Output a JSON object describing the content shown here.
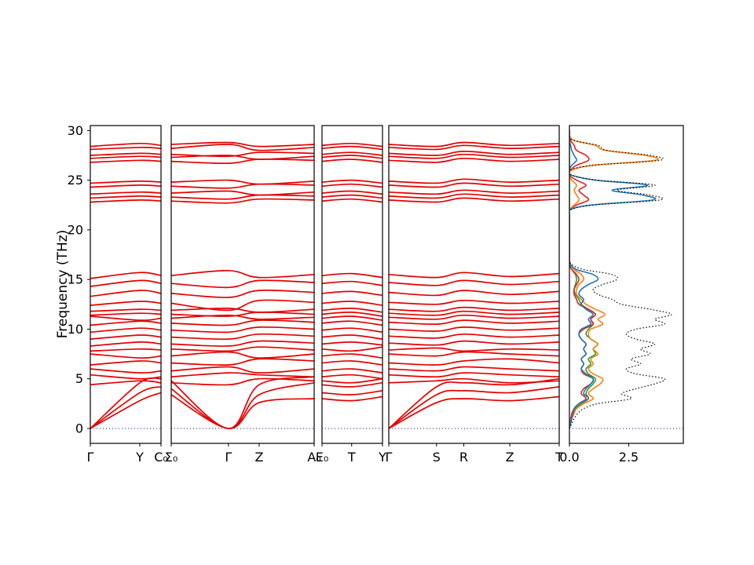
{
  "figure": {
    "background": "#ffffff",
    "colors": {
      "band": "#e60000",
      "zero_line": "#0000cc",
      "axis": "#000000",
      "dos_total": "#000000"
    }
  },
  "chart_data": {
    "type": "line",
    "title": "",
    "ylabel": "Frequency (THz)",
    "ylim": [
      -1.5,
      30.5
    ],
    "yticks": [
      0,
      5,
      10,
      15,
      20,
      25,
      30
    ],
    "panels": [
      {
        "id": "seg1",
        "ticks": [
          {
            "label": "Γ",
            "pos": 0
          },
          {
            "label": "Y",
            "pos": 0.7
          },
          {
            "label": "C₀",
            "pos": 1
          }
        ]
      },
      {
        "id": "seg2",
        "ticks": [
          {
            "label": "Σ₀",
            "pos": 0
          },
          {
            "label": "Γ",
            "pos": 0.4
          },
          {
            "label": "Z",
            "pos": 0.615
          },
          {
            "label": "A₀",
            "pos": 1
          }
        ]
      },
      {
        "id": "seg3",
        "ticks": [
          {
            "label": "E₀",
            "pos": 0
          },
          {
            "label": "T",
            "pos": 0.49
          },
          {
            "label": "Y",
            "pos": 1
          }
        ]
      },
      {
        "id": "seg4",
        "ticks": [
          {
            "label": "Γ",
            "pos": 0
          },
          {
            "label": "S",
            "pos": 0.28
          },
          {
            "label": "R",
            "pos": 0.44
          },
          {
            "label": "Z",
            "pos": 0.71
          },
          {
            "label": "T",
            "pos": 1
          }
        ]
      },
      {
        "id": "dos",
        "xlim": [
          0,
          4.8
        ],
        "ticks": [
          {
            "label": "0.0",
            "value": 0
          },
          {
            "label": "2.5",
            "value": 2.5
          }
        ]
      }
    ],
    "bands": [
      [
        [
          0,
          2.8,
          3.6
        ],
        [
          3.4,
          0,
          2.6,
          3.0
        ],
        [
          3.0,
          2.8,
          3.2
        ],
        [
          0,
          2.6,
          3.0,
          2.8,
          3.2
        ]
      ],
      [
        [
          0,
          3.6,
          4.2
        ],
        [
          4.0,
          0,
          3.4,
          4.6
        ],
        [
          3.6,
          3.4,
          3.8
        ],
        [
          0,
          3.4,
          3.8,
          3.6,
          4.2
        ]
      ],
      [
        [
          0,
          4.6,
          5.0
        ],
        [
          4.8,
          0,
          4.4,
          5.2
        ],
        [
          4.4,
          4.2,
          4.6
        ],
        [
          0,
          4.2,
          4.6,
          4.4,
          5.0
        ]
      ],
      [
        [
          4.4,
          4.8,
          4.6
        ],
        [
          4.6,
          4.4,
          5.0,
          4.8
        ],
        [
          4.8,
          4.6,
          5.0
        ],
        [
          4.6,
          4.8,
          5.0,
          4.6,
          4.8
        ]
      ],
      [
        [
          5.4,
          5.0,
          5.2
        ],
        [
          5.2,
          5.6,
          5.4,
          5.2
        ],
        [
          5.2,
          5.4,
          5.0
        ],
        [
          5.4,
          5.2,
          5.6,
          5.4,
          5.2
        ]
      ],
      [
        [
          6.0,
          5.6,
          5.8
        ],
        [
          5.8,
          6.2,
          5.6,
          6.0
        ],
        [
          5.8,
          6.0,
          5.6
        ],
        [
          6.0,
          5.8,
          6.2,
          6.0,
          5.8
        ]
      ],
      [
        [
          6.4,
          6.8,
          6.6
        ],
        [
          6.6,
          6.4,
          7.0,
          6.8
        ],
        [
          6.6,
          6.8,
          6.4
        ],
        [
          6.6,
          6.4,
          6.8,
          7.0,
          6.6
        ]
      ],
      [
        [
          7.5,
          7.1,
          7.3
        ],
        [
          7.3,
          7.7,
          7.1,
          7.5
        ],
        [
          7.3,
          7.5,
          7.1
        ],
        [
          7.5,
          7.3,
          7.7,
          7.5,
          7.3
        ]
      ],
      [
        [
          7.8,
          8.0,
          7.9
        ],
        [
          8.0,
          7.8,
          8.2,
          7.9
        ],
        [
          8.0,
          7.8,
          8.2
        ],
        [
          7.9,
          8.1,
          7.8,
          8.0,
          7.9
        ]
      ],
      [
        [
          8.3,
          8.7,
          8.5
        ],
        [
          8.5,
          8.3,
          8.8,
          8.6
        ],
        [
          8.5,
          8.7,
          8.4
        ],
        [
          8.6,
          8.4,
          8.8,
          8.5,
          8.7
        ]
      ],
      [
        [
          9.0,
          9.4,
          9.2
        ],
        [
          9.2,
          9.0,
          9.5,
          9.3
        ],
        [
          9.2,
          9.4,
          9.0
        ],
        [
          9.3,
          9.1,
          9.5,
          9.2,
          9.4
        ]
      ],
      [
        [
          9.7,
          10.1,
          9.9
        ],
        [
          9.9,
          9.7,
          10.2,
          10.0
        ],
        [
          9.9,
          10.1,
          9.7
        ],
        [
          10.0,
          9.8,
          10.2,
          9.9,
          10.1
        ]
      ],
      [
        [
          10.4,
          10.8,
          10.6
        ],
        [
          10.6,
          10.4,
          10.9,
          10.7
        ],
        [
          10.6,
          10.8,
          10.4
        ],
        [
          10.7,
          10.5,
          10.9,
          10.6,
          10.8
        ]
      ],
      [
        [
          11.3,
          10.9,
          11.1
        ],
        [
          11.1,
          11.4,
          11.0,
          11.2
        ],
        [
          11.1,
          11.3,
          10.9
        ],
        [
          11.2,
          11.0,
          11.4,
          11.1,
          11.3
        ]
      ],
      [
        [
          11.4,
          11.6,
          11.5
        ],
        [
          11.5,
          11.3,
          11.7,
          11.5
        ],
        [
          11.5,
          11.7,
          11.3
        ],
        [
          11.6,
          11.4,
          11.8,
          11.5,
          11.7
        ]
      ],
      [
        [
          11.8,
          12.0,
          11.9
        ],
        [
          11.9,
          12.1,
          11.7,
          12.0
        ],
        [
          11.9,
          12.1,
          11.7
        ],
        [
          12.0,
          11.8,
          12.2,
          11.9,
          12.1
        ]
      ],
      [
        [
          12.4,
          12.8,
          12.6
        ],
        [
          12.6,
          11.9,
          12.9,
          12.7
        ],
        [
          12.6,
          12.8,
          12.4
        ],
        [
          12.7,
          12.5,
          12.9,
          12.6,
          12.8
        ]
      ],
      [
        [
          13.3,
          13.9,
          13.6
        ],
        [
          13.6,
          13.2,
          13.9,
          13.7
        ],
        [
          13.6,
          13.8,
          13.4
        ],
        [
          13.7,
          13.4,
          13.9,
          13.5,
          13.8
        ]
      ],
      [
        [
          14.3,
          14.9,
          14.6
        ],
        [
          14.6,
          14.2,
          14.9,
          14.7
        ],
        [
          14.6,
          14.8,
          14.4
        ],
        [
          14.7,
          14.4,
          14.9,
          14.5,
          14.8
        ]
      ],
      [
        [
          15.1,
          15.7,
          15.4
        ],
        [
          15.4,
          15.9,
          15.2,
          15.5
        ],
        [
          15.4,
          15.6,
          15.2
        ],
        [
          15.5,
          15.2,
          15.7,
          15.3,
          15.6
        ]
      ],
      [
        [
          22.8,
          23.0,
          22.9
        ],
        [
          22.9,
          22.7,
          23.1,
          23.0
        ],
        [
          22.9,
          23.1,
          22.8
        ],
        [
          23.0,
          22.8,
          23.2,
          22.9,
          23.1
        ]
      ],
      [
        [
          23.2,
          23.4,
          23.3
        ],
        [
          23.3,
          23.1,
          23.5,
          23.4
        ],
        [
          23.3,
          23.5,
          23.2
        ],
        [
          23.4,
          23.2,
          23.6,
          23.3,
          23.5
        ]
      ],
      [
        [
          23.6,
          23.8,
          23.7
        ],
        [
          23.7,
          23.9,
          23.5,
          23.8
        ],
        [
          23.7,
          23.9,
          23.6
        ],
        [
          23.8,
          23.6,
          24.0,
          23.7,
          23.9
        ]
      ],
      [
        [
          24.3,
          24.5,
          24.4
        ],
        [
          24.4,
          24.2,
          24.6,
          24.5
        ],
        [
          24.4,
          24.6,
          24.3
        ],
        [
          24.5,
          24.3,
          24.7,
          24.4,
          24.6
        ]
      ],
      [
        [
          24.7,
          24.9,
          24.8
        ],
        [
          24.8,
          25.0,
          24.6,
          24.9
        ],
        [
          24.8,
          25.0,
          24.7
        ],
        [
          24.9,
          24.7,
          25.1,
          24.8,
          25.0
        ]
      ],
      [
        [
          26.8,
          27.0,
          26.9
        ],
        [
          26.9,
          26.7,
          27.1,
          27.0
        ],
        [
          26.9,
          27.1,
          26.8
        ],
        [
          27.0,
          26.8,
          27.2,
          26.9,
          27.1
        ]
      ],
      [
        [
          27.2,
          27.4,
          27.3
        ],
        [
          27.3,
          27.5,
          27.1,
          27.4
        ],
        [
          27.3,
          27.5,
          27.2
        ],
        [
          27.4,
          27.2,
          27.6,
          27.3,
          27.5
        ]
      ],
      [
        [
          27.5,
          27.7,
          27.6
        ],
        [
          27.6,
          27.4,
          27.8,
          27.7
        ],
        [
          27.6,
          27.8,
          27.5
        ],
        [
          27.7,
          27.5,
          27.9,
          27.6,
          27.8
        ]
      ],
      [
        [
          28.1,
          28.3,
          28.2
        ],
        [
          28.2,
          28.6,
          28.0,
          28.3
        ],
        [
          28.2,
          28.4,
          28.1
        ],
        [
          28.3,
          28.1,
          28.5,
          28.2,
          28.4
        ]
      ],
      [
        [
          28.4,
          28.7,
          28.5
        ],
        [
          28.6,
          28.8,
          28.4,
          28.6
        ],
        [
          28.5,
          28.7,
          28.4
        ],
        [
          28.6,
          28.4,
          28.8,
          28.5,
          28.7
        ]
      ]
    ],
    "dos": {
      "freq_step": 0.5,
      "freq_max": 30,
      "total": {
        "style": "dotted",
        "color": "#000000",
        "values": [
          0,
          0.1,
          0.2,
          0.35,
          0.6,
          1.2,
          2.6,
          2.2,
          2.8,
          3.6,
          4.0,
          2.8,
          2.4,
          3.0,
          2.6,
          3.4,
          3.0,
          3.6,
          2.8,
          2.4,
          2.8,
          4.0,
          3.6,
          4.3,
          3.4,
          2.2,
          1.8,
          1.2,
          1.0,
          1.4,
          2.0,
          1.8,
          0.6,
          0.1,
          0,
          0,
          0,
          0,
          0,
          0,
          0,
          0,
          0,
          0,
          0,
          1.0,
          3.8,
          3.4,
          2.0,
          3.6,
          1.2,
          0.1,
          0,
          1.0,
          3.8,
          3.4,
          1.6,
          1.2,
          0.2,
          0,
          0
        ]
      },
      "partials": [
        {
          "name": "series-green",
          "color": "#2ca02c",
          "values": [
            0,
            0.05,
            0.1,
            0.15,
            0.25,
            0.5,
            0.8,
            0.7,
            0.8,
            1.0,
            1.1,
            0.8,
            0.7,
            0.9,
            0.8,
            1.1,
            1.0,
            1.2,
            0.9,
            0.7,
            0.8,
            1.0,
            0.9,
            1.1,
            0.8,
            0.5,
            0.4,
            0.25,
            0.2,
            0.25,
            0.3,
            0.25,
            0.1,
            0,
            0,
            0,
            0,
            0,
            0,
            0,
            0,
            0,
            0,
            0,
            0,
            0,
            0,
            0,
            0,
            0,
            0,
            0,
            0,
            0,
            0,
            0,
            0,
            0,
            0,
            0,
            0
          ]
        },
        {
          "name": "series-red",
          "color": "#d62728",
          "values": [
            0,
            0.03,
            0.06,
            0.1,
            0.2,
            0.4,
            0.7,
            0.5,
            0.6,
            0.9,
            1.0,
            0.6,
            0.5,
            0.6,
            0.5,
            0.7,
            0.6,
            0.7,
            0.5,
            0.4,
            0.6,
            1.0,
            0.9,
            1.1,
            0.8,
            0.4,
            0.3,
            0.2,
            0.2,
            0.3,
            0.4,
            0.3,
            0.1,
            0,
            0,
            0,
            0,
            0,
            0,
            0,
            0,
            0,
            0,
            0,
            0,
            0.3,
            0.8,
            0.6,
            0.4,
            0.7,
            0.3,
            0,
            0.05,
            0.3,
            0.8,
            0.7,
            0.3,
            0.2,
            0.05,
            0,
            0
          ]
        },
        {
          "name": "series-orange",
          "color": "#ff7f0e",
          "values": [
            0,
            0.05,
            0.1,
            0.2,
            0.3,
            0.6,
            1.0,
            0.8,
            1.0,
            1.3,
            1.4,
            1.0,
            0.8,
            1.0,
            0.9,
            1.2,
            1.0,
            1.2,
            0.9,
            0.8,
            0.9,
            1.4,
            1.2,
            1.5,
            1.1,
            0.7,
            0.5,
            0.3,
            0.3,
            0.4,
            0.6,
            0.5,
            0.2,
            0.05,
            0,
            0,
            0,
            0,
            0,
            0,
            0,
            0,
            0,
            0,
            0,
            0.2,
            0.4,
            0.3,
            0.2,
            0.3,
            0.1,
            0,
            0.1,
            1.0,
            3.6,
            3.2,
            1.5,
            1.1,
            0.2,
            0,
            0
          ]
        },
        {
          "name": "series-blue",
          "color": "#1f77b4",
          "values": [
            0,
            0.05,
            0.1,
            0.15,
            0.2,
            0.4,
            0.8,
            0.6,
            0.7,
            0.9,
            1.0,
            0.7,
            0.5,
            0.6,
            0.5,
            0.7,
            0.6,
            0.7,
            0.5,
            0.4,
            0.5,
            0.9,
            0.8,
            1.0,
            0.7,
            0.5,
            0.6,
            0.4,
            0.5,
            0.8,
            1.2,
            1.0,
            0.3,
            0.05,
            0,
            0,
            0,
            0,
            0,
            0,
            0,
            0,
            0,
            0,
            0,
            0.9,
            3.5,
            3.1,
            1.8,
            3.3,
            1.1,
            0.1,
            0,
            0.1,
            0.3,
            0.2,
            0.1,
            0.05,
            0,
            0,
            0
          ]
        }
      ]
    }
  }
}
